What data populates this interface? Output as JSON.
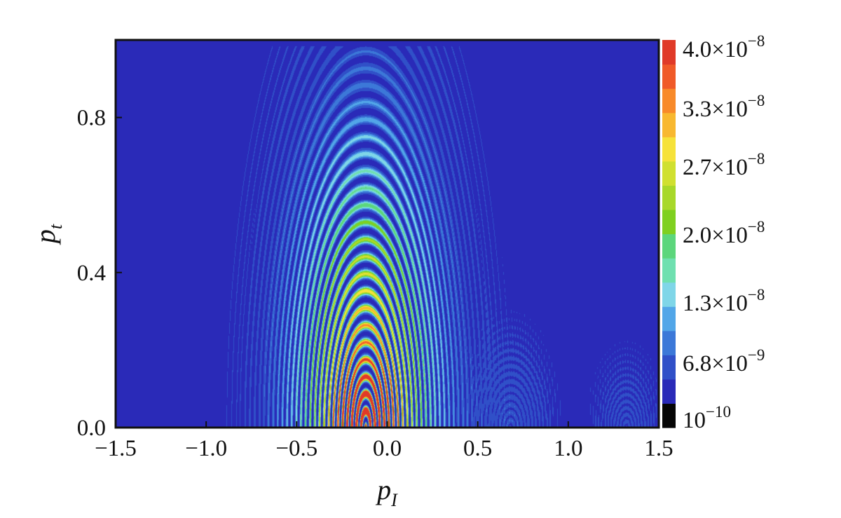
{
  "chart_data": {
    "type": "heatmap",
    "title": "",
    "xlabel": {
      "main": "p",
      "sub": "I"
    },
    "ylabel": {
      "main": "p",
      "sub": "t"
    },
    "xlim": [
      -1.5,
      1.5
    ],
    "ylim": [
      0.0,
      1.0
    ],
    "x_tick_labels": [
      "−1.5",
      "−1.0",
      "−0.5",
      "0.0",
      "0.5",
      "1.0",
      "1.5"
    ],
    "x_tick_values": [
      -1.5,
      -1.0,
      -0.5,
      0.0,
      0.5,
      1.0,
      1.5
    ],
    "y_tick_labels": [
      "0.0",
      "0.4",
      "0.8"
    ],
    "y_tick_values": [
      0.0,
      0.4,
      0.8
    ],
    "colorbar": {
      "min": 1e-10,
      "max": 4e-08,
      "labels": [
        {
          "value": 4e-08,
          "mantissa": "4.0×10",
          "exponent": "−8"
        },
        {
          "value": 3.3e-08,
          "mantissa": "3.3×10",
          "exponent": "−8"
        },
        {
          "value": 2.7e-08,
          "mantissa": "2.7×10",
          "exponent": "−8"
        },
        {
          "value": 2e-08,
          "mantissa": "2.0×10",
          "exponent": "−8"
        },
        {
          "value": 1.3e-08,
          "mantissa": "1.3×10",
          "exponent": "−8"
        },
        {
          "value": 6.8e-09,
          "mantissa": "6.8×10",
          "exponent": "−9"
        },
        {
          "value": 1e-10,
          "mantissa": "10",
          "exponent": "−10"
        }
      ],
      "colors": [
        "#050505",
        "#2a2ab8",
        "#3050c8",
        "#3c78d8",
        "#52a6e8",
        "#7fd6e8",
        "#6fe0b0",
        "#5cd67c",
        "#7fd020",
        "#a8d82a",
        "#d0e030",
        "#f6e23a",
        "#f8b830",
        "#f88a2a",
        "#f05a28",
        "#e03a28"
      ]
    },
    "features": {
      "peak_location": {
        "x": -0.12,
        "y": 0.02
      },
      "peak_value": 4e-08,
      "background_value": 1e-10
    }
  }
}
